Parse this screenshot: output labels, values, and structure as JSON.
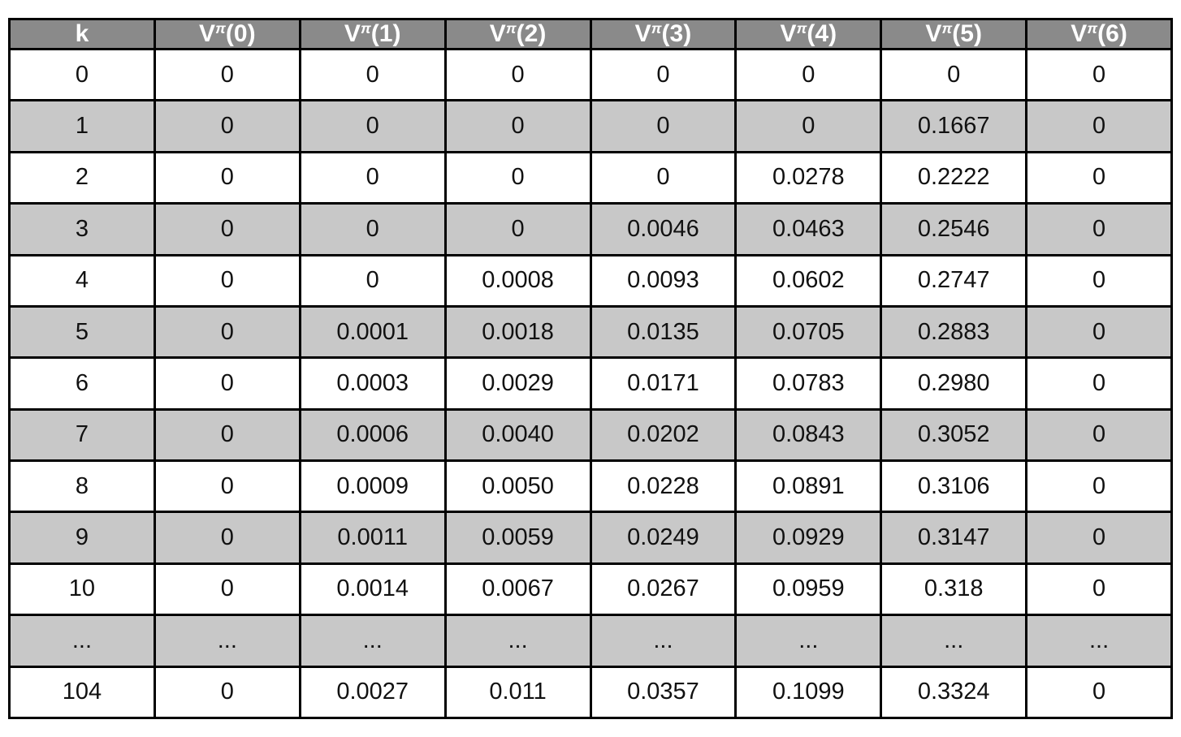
{
  "colors": {
    "header_bg": "#8a8a8a",
    "header_text": "#ffffff",
    "row_bg": "#ffffff",
    "row_alt_bg": "#c8c8c8",
    "border": "#000000"
  },
  "chart_data": {
    "type": "table",
    "columns": [
      {
        "label": "k",
        "base": "k",
        "sup": "",
        "arg": ""
      },
      {
        "label": "Vπ(0)",
        "base": "V",
        "sup": "π",
        "arg": "(0)"
      },
      {
        "label": "Vπ(1)",
        "base": "V",
        "sup": "π",
        "arg": "(1)"
      },
      {
        "label": "Vπ(2)",
        "base": "V",
        "sup": "π",
        "arg": "(2)"
      },
      {
        "label": "Vπ(3)",
        "base": "V",
        "sup": "π",
        "arg": "(3)"
      },
      {
        "label": "Vπ(4)",
        "base": "V",
        "sup": "π",
        "arg": "(4)"
      },
      {
        "label": "Vπ(5)",
        "base": "V",
        "sup": "π",
        "arg": "(5)"
      },
      {
        "label": "Vπ(6)",
        "base": "V",
        "sup": "π",
        "arg": "(6)"
      }
    ],
    "rows": [
      [
        "0",
        "0",
        "0",
        "0",
        "0",
        "0",
        "0",
        "0"
      ],
      [
        "1",
        "0",
        "0",
        "0",
        "0",
        "0",
        "0.1667",
        "0"
      ],
      [
        "2",
        "0",
        "0",
        "0",
        "0",
        "0.0278",
        "0.2222",
        "0"
      ],
      [
        "3",
        "0",
        "0",
        "0",
        "0.0046",
        "0.0463",
        "0.2546",
        "0"
      ],
      [
        "4",
        "0",
        "0",
        "0.0008",
        "0.0093",
        "0.0602",
        "0.2747",
        "0"
      ],
      [
        "5",
        "0",
        "0.0001",
        "0.0018",
        "0.0135",
        "0.0705",
        "0.2883",
        "0"
      ],
      [
        "6",
        "0",
        "0.0003",
        "0.0029",
        "0.0171",
        "0.0783",
        "0.2980",
        "0"
      ],
      [
        "7",
        "0",
        "0.0006",
        "0.0040",
        "0.0202",
        "0.0843",
        "0.3052",
        "0"
      ],
      [
        "8",
        "0",
        "0.0009",
        "0.0050",
        "0.0228",
        "0.0891",
        "0.3106",
        "0"
      ],
      [
        "9",
        "0",
        "0.0011",
        "0.0059",
        "0.0249",
        "0.0929",
        "0.3147",
        "0"
      ],
      [
        "10",
        "0",
        "0.0014",
        "0.0067",
        "0.0267",
        "0.0959",
        "0.318",
        "0"
      ],
      [
        "...",
        "...",
        "...",
        "...",
        "...",
        "...",
        "...",
        "..."
      ],
      [
        "104",
        "0",
        "0.0027",
        "0.011",
        "0.0357",
        "0.1099",
        "0.3324",
        "0"
      ]
    ]
  }
}
